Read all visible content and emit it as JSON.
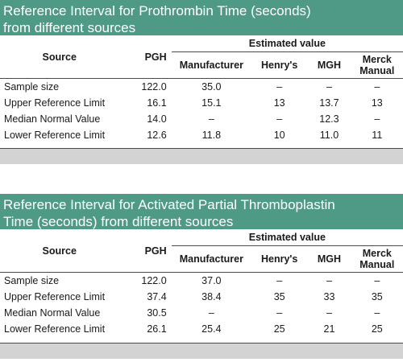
{
  "columns": {
    "source": "Source",
    "pgh": "PGH",
    "group": "Estimated value",
    "manufacturer": "Manufacturer",
    "henrys": "Henry's",
    "mgh": "MGH",
    "merck_line1": "Merck",
    "merck_line2": "Manual"
  },
  "tables": [
    {
      "title_line1": "Reference Interval for Prothrombin Time (seconds)",
      "title_line2": "from different sources",
      "rows": [
        {
          "label": "Sample size",
          "pgh": "122.0",
          "manufacturer": "35.0",
          "henrys": "–",
          "mgh": "–",
          "merck": "–"
        },
        {
          "label": "Upper Reference Limit",
          "pgh": "16.1",
          "manufacturer": "15.1",
          "henrys": "13",
          "mgh": "13.7",
          "merck": "13"
        },
        {
          "label": "Median Normal Value",
          "pgh": "14.0",
          "manufacturer": "–",
          "henrys": "–",
          "mgh": "12.3",
          "merck": "–"
        },
        {
          "label": "Lower Reference Limit",
          "pgh": "12.6",
          "manufacturer": "11.8",
          "henrys": "10",
          "mgh": "11.0",
          "merck": "11"
        }
      ]
    },
    {
      "title_line1": "Reference Interval for Activated Partial Thromboplastin",
      "title_line2": "Time (seconds) from different sources",
      "rows": [
        {
          "label": "Sample size",
          "pgh": "122.0",
          "manufacturer": "37.0",
          "henrys": "–",
          "mgh": "–",
          "merck": "–"
        },
        {
          "label": "Upper Reference Limit",
          "pgh": "37.4",
          "manufacturer": "38.4",
          "henrys": "35",
          "mgh": "33",
          "merck": "35"
        },
        {
          "label": "Median Normal Value",
          "pgh": "30.5",
          "manufacturer": "–",
          "henrys": "–",
          "mgh": "–",
          "merck": "–"
        },
        {
          "label": "Lower Reference Limit",
          "pgh": "26.1",
          "manufacturer": "25.4",
          "henrys": "25",
          "mgh": "21",
          "merck": "25"
        }
      ]
    }
  ]
}
